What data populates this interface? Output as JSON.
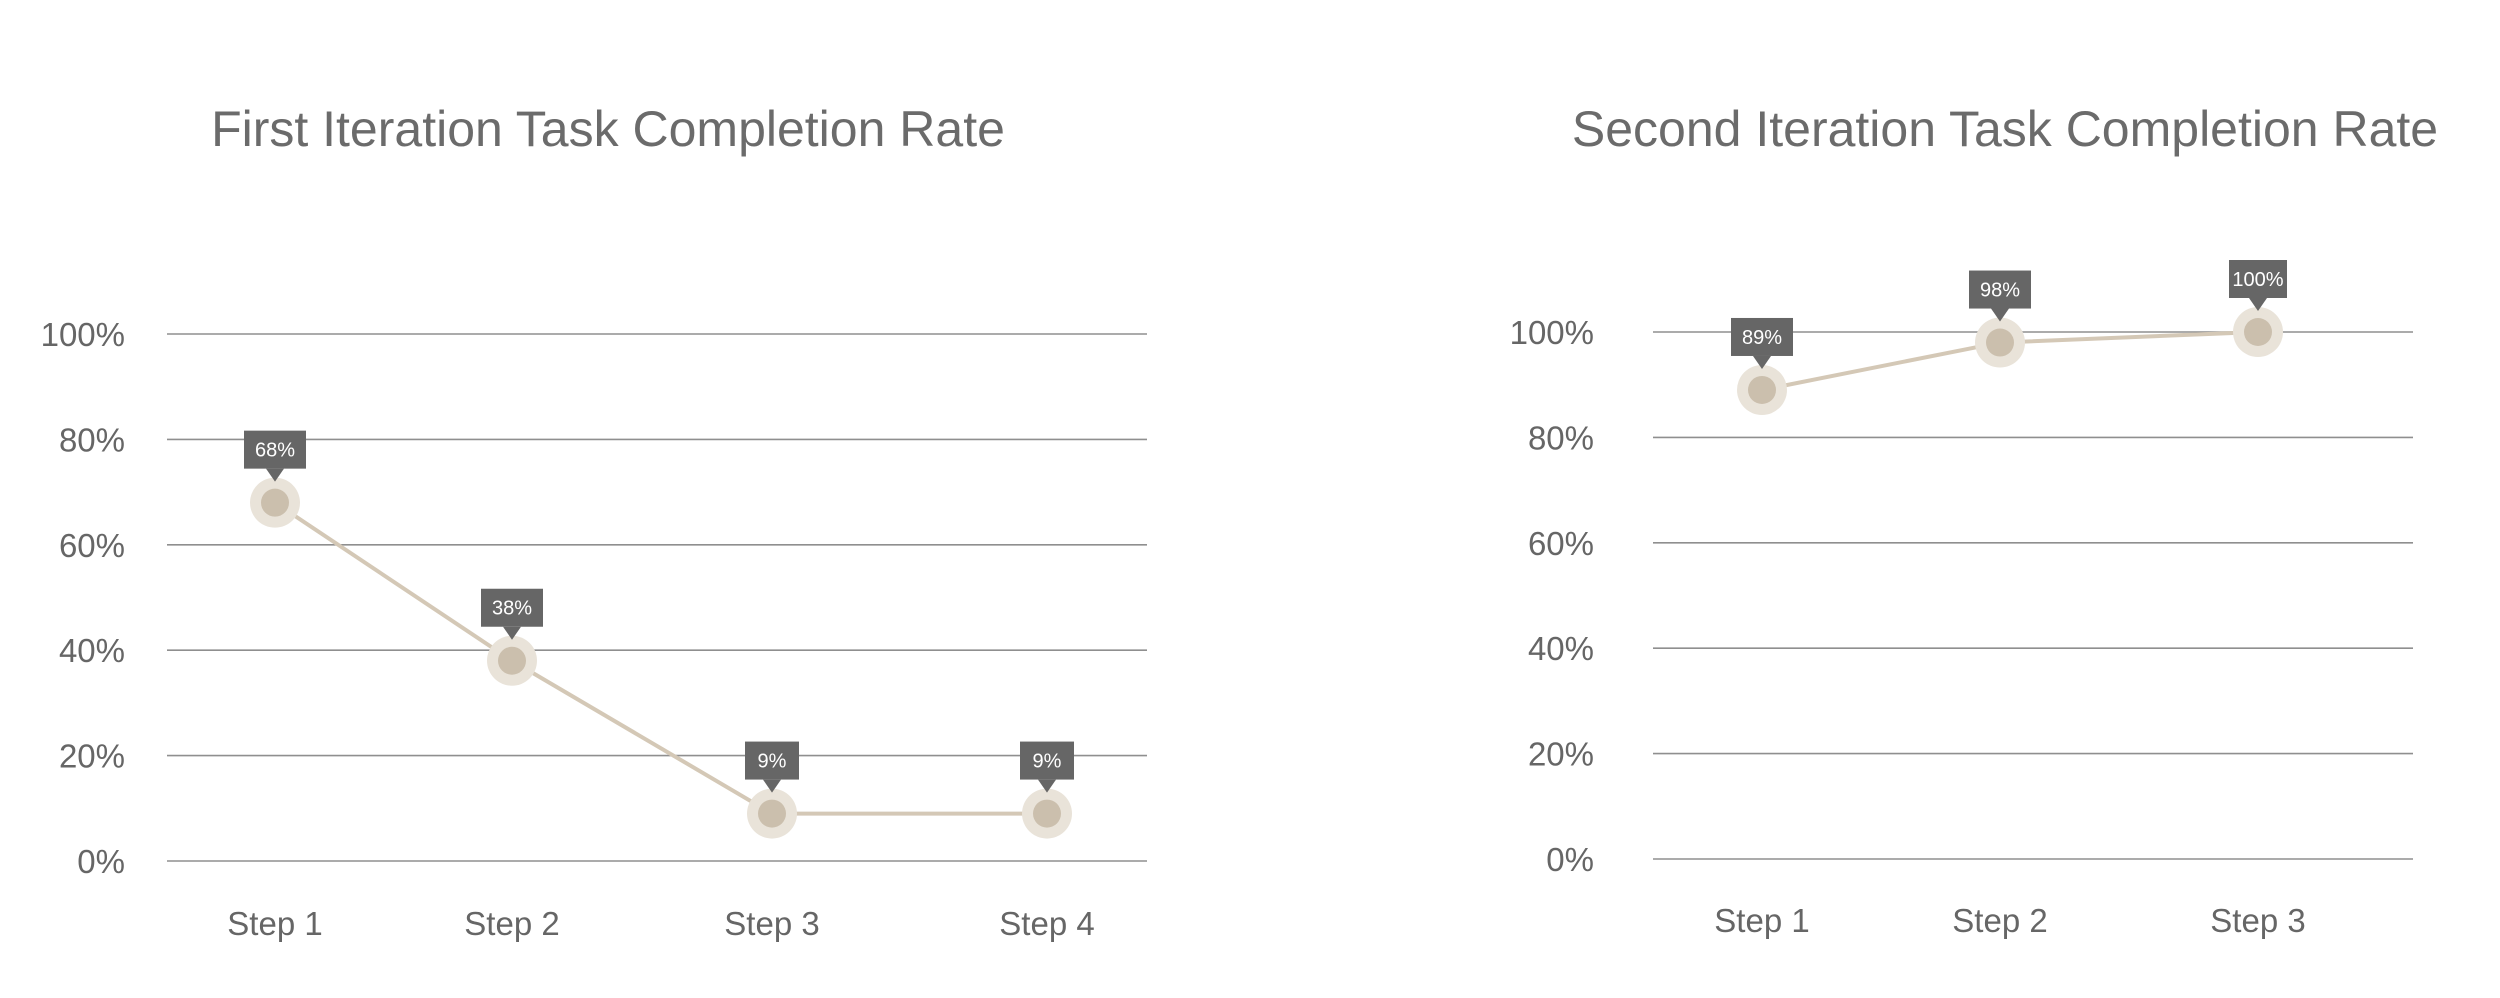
{
  "chart_data": [
    {
      "type": "line",
      "title": "First Iteration Task Completion Rate",
      "xlabel": "",
      "ylabel": "",
      "categories": [
        "Step 1",
        "Step 2",
        "Step 3",
        "Step 4"
      ],
      "values": [
        68,
        38,
        9,
        9
      ],
      "data_labels": [
        "68%",
        "38%",
        "9%",
        "9%"
      ],
      "ylim": [
        0,
        100
      ],
      "yticks": [
        "0%",
        "20%",
        "40%",
        "60%",
        "80%",
        "100%"
      ],
      "grid": true,
      "legend": "none"
    },
    {
      "type": "line",
      "title": "Second Iteration Task Completion Rate",
      "xlabel": "",
      "ylabel": "",
      "categories": [
        "Step 1",
        "Step 2",
        "Step 3"
      ],
      "values": [
        89,
        98,
        100
      ],
      "data_labels": [
        "89%",
        "98%",
        "100%"
      ],
      "ylim": [
        0,
        100
      ],
      "yticks": [
        "0%",
        "20%",
        "40%",
        "60%",
        "80%",
        "100%"
      ],
      "grid": true,
      "legend": "none"
    }
  ],
  "colors": {
    "line": "#d4c8b6",
    "marker": "#cbbfad",
    "marker_halo": "#e9e3d9",
    "gridline": "#8f8f8f",
    "label_box": "#666666",
    "label_text": "#ffffff",
    "title_text": "#6b6b6b",
    "tick_text": "#666666"
  }
}
